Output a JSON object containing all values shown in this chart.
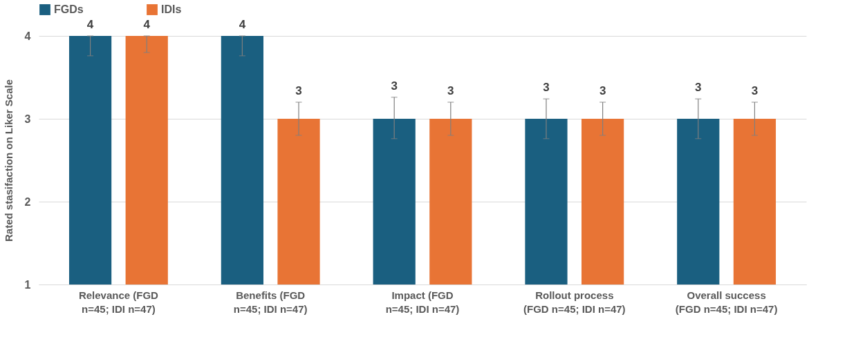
{
  "chart_data": {
    "type": "bar",
    "ylabel": "Rated stasifaction on Liker Scale",
    "categories": [
      "Relevance (FGD n=45; IDI n=47)",
      "Benefits (FGD n=45; IDI n=47)",
      "Impact (FGD n=45; IDI n=47)",
      "Rollout process (FGD n=45; IDI n=47)",
      "Overall success (FGD n=45; IDI n=47)"
    ],
    "series": [
      {
        "name": "FGDs",
        "color": "#1a5f80",
        "values": [
          4,
          4,
          3,
          3,
          3
        ],
        "errors": [
          [
            3.76,
            4
          ],
          [
            3.76,
            4
          ],
          [
            2.76,
            3.26
          ],
          [
            2.76,
            3.24
          ],
          [
            2.76,
            3.24
          ]
        ]
      },
      {
        "name": "IDIs",
        "color": "#e87435",
        "values": [
          4,
          3,
          3,
          3,
          3
        ],
        "errors": [
          [
            3.8,
            4
          ],
          [
            2.8,
            3.2
          ],
          [
            2.8,
            3.2
          ],
          [
            2.8,
            3.2
          ],
          [
            2.8,
            3.2
          ]
        ]
      }
    ],
    "ylim": [
      1,
      4
    ],
    "yticks": [
      1,
      2,
      3,
      4
    ],
    "grid": "y",
    "legend": "top",
    "data_labels": true
  }
}
